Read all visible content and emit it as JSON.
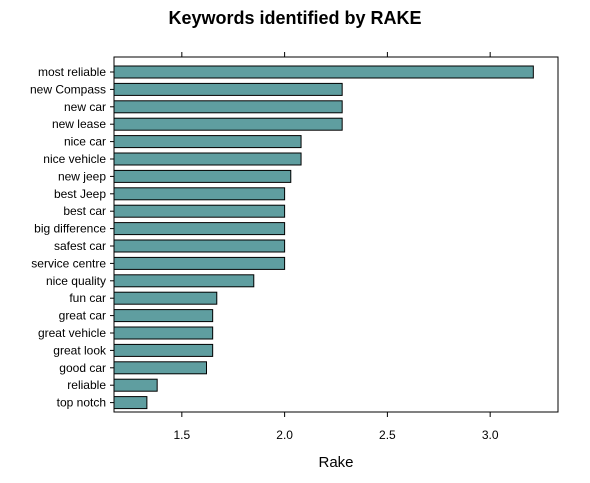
{
  "chart_data": {
    "type": "bar",
    "orientation": "horizontal",
    "title": "Keywords identified by RAKE",
    "xlabel": "Rake",
    "ylabel": "",
    "categories": [
      "most reliable",
      "new Compass",
      "new car",
      "new lease",
      "nice car",
      "nice vehicle",
      "new jeep",
      "best Jeep",
      "best car",
      "big difference",
      "safest car",
      "service centre",
      "nice quality",
      "fun car",
      "great car",
      "great vehicle",
      "great look",
      "good car",
      "reliable",
      "top notch"
    ],
    "values": [
      3.21,
      2.28,
      2.28,
      2.28,
      2.08,
      2.08,
      2.03,
      2.0,
      2.0,
      2.0,
      2.0,
      2.0,
      1.85,
      1.67,
      1.65,
      1.65,
      1.65,
      1.62,
      1.38,
      1.33
    ],
    "xlim": [
      1.17,
      3.33
    ],
    "xticks": [
      "1.5",
      "2.0",
      "2.5",
      "3.0"
    ],
    "grid": false,
    "bar_color": "#5f9ea0"
  }
}
